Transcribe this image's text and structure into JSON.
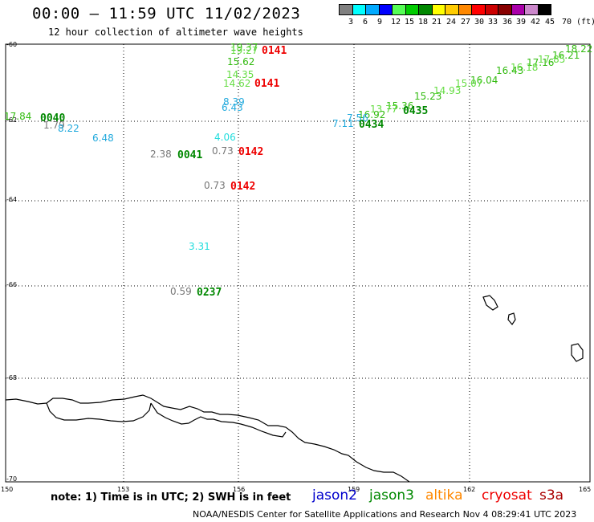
{
  "header": {
    "title": "00:00 – 11:59 UTC 11/02/2023",
    "subtitle": "12 hour collection of altimeter wave heights"
  },
  "legend": {
    "colors": [
      "#808080",
      "#00ffff",
      "#00aaff",
      "#0000ff",
      "#55ff55",
      "#00cc00",
      "#008800",
      "#ffff00",
      "#ffcc00",
      "#ff8800",
      "#ff0000",
      "#cc0000",
      "#880000",
      "#aa00aa",
      "#cc88cc",
      "#000000"
    ],
    "labels": [
      "3",
      "6",
      "9",
      "12",
      "15",
      "18",
      "21",
      "24",
      "27",
      "30",
      "33",
      "36",
      "39",
      "42",
      "45",
      "70",
      "(ft)"
    ]
  },
  "axes": {
    "lat_labels": [
      "-60",
      "-62",
      "-64",
      "-66",
      "-68",
      "-70"
    ],
    "lon_labels": [
      "150",
      "153",
      "156",
      "159",
      "162",
      "165"
    ]
  },
  "observations": [
    {
      "text": "18.22",
      "color": "#33bb11"
    },
    {
      "text": "16.21",
      "color": "#33bb11"
    },
    {
      "text": "17.85",
      "color": "#66dd44"
    },
    {
      "text": "17.16",
      "color": "#33bb11"
    },
    {
      "text": "16.18",
      "color": "#66dd44"
    },
    {
      "text": "16.43",
      "color": "#33bb11"
    },
    {
      "text": "16.04",
      "color": "#33bb11"
    },
    {
      "text": "15.07",
      "color": "#66dd44"
    },
    {
      "text": "14.93",
      "color": "#66dd44"
    },
    {
      "text": "15.23",
      "color": "#33bb11"
    },
    {
      "text": "15.36",
      "color": "#33bb11"
    },
    {
      "text": "13.77",
      "color": "#66dd44"
    },
    {
      "text": "16.92",
      "color": "#33bb11"
    },
    {
      "text": "7.11",
      "color": "#22aadd"
    },
    {
      "text": "7.56",
      "color": "#22aadd"
    },
    {
      "text": "19.37",
      "color": "#33bb11"
    },
    {
      "text": "19.27",
      "color": "#66dd44"
    },
    {
      "text": "15.62",
      "color": "#33bb11"
    },
    {
      "text": "14.35",
      "color": "#66dd44"
    },
    {
      "text": "14.62",
      "color": "#66dd44"
    },
    {
      "text": "8.39",
      "color": "#22aadd"
    },
    {
      "text": "6.43",
      "color": "#22aadd"
    },
    {
      "text": "4.06",
      "color": "#22dddd"
    },
    {
      "text": "0.73",
      "color": "#777777"
    },
    {
      "text": "0.73",
      "color": "#777777"
    },
    {
      "text": "2.38",
      "color": "#777777"
    },
    {
      "text": "17.84",
      "color": "#33bb11"
    },
    {
      "text": "1.79",
      "color": "#777777"
    },
    {
      "text": "8.22",
      "color": "#22aadd"
    },
    {
      "text": "6.48",
      "color": "#22aadd"
    },
    {
      "text": "3.31",
      "color": "#22dddd"
    },
    {
      "text": "0.59",
      "color": "#777777"
    }
  ],
  "passes": [
    {
      "text": "0141",
      "color": "#ee0000"
    },
    {
      "text": "0141",
      "color": "#ee0000"
    },
    {
      "text": "0142",
      "color": "#ee0000"
    },
    {
      "text": "0142",
      "color": "#ee0000"
    },
    {
      "text": "0040",
      "color": "#008800"
    },
    {
      "text": "0041",
      "color": "#008800"
    },
    {
      "text": "0237",
      "color": "#008800"
    },
    {
      "text": "0434",
      "color": "#008800"
    },
    {
      "text": "0435",
      "color": "#008800"
    }
  ],
  "footer": {
    "note": "note: 1) Time is in UTC; 2) SWH is in feet",
    "credit": "NOAA/NESDIS Center for Satellite Applications and Research    Nov  4 08:29:41 UTC 2023",
    "satellites": [
      {
        "name": "jason2",
        "color": "#0000cc"
      },
      {
        "name": "jason3",
        "color": "#008800"
      },
      {
        "name": "altika",
        "color": "#ff8800"
      },
      {
        "name": "cryosat",
        "color": "#ee0000"
      },
      {
        "name": "s3a",
        "color": "#aa0000"
      }
    ]
  }
}
